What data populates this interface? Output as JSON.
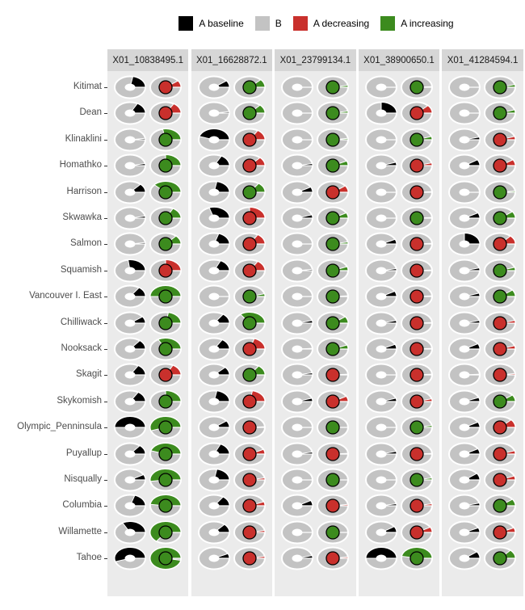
{
  "chart_data": {
    "type": "pie",
    "title": "",
    "xlabel": "",
    "ylabel": "",
    "grid": false,
    "legend_position": "top",
    "legend": [
      {
        "label": "A baseline",
        "color": "#000000"
      },
      {
        "label": "B",
        "color": "#C3C3C3"
      },
      {
        "label": "A decreasing",
        "color": "#C9302C"
      },
      {
        "label": "A increasing",
        "color": "#3C8B1E"
      }
    ],
    "facets": [
      "X01_10838495.1",
      "X01_16628872.1",
      "X01_23799134.1",
      "X01_38900650.1",
      "X01_41284594.1"
    ],
    "rows": [
      "Kitimat",
      "Dean",
      "Klinaklini",
      "Homathko",
      "Harrison",
      "Skwawka",
      "Salmon",
      "Squamish",
      "Vancouver I. East",
      "Chilliwack",
      "Nooksack",
      "Skagit",
      "Skykomish",
      "Olympic_Penninsula",
      "Puyallup",
      "Nisqually",
      "Columbia",
      "Willamette",
      "Tahoe"
    ],
    "glyphs_per_cell": [
      "left donut: black wedge = A baseline fraction, rest B (gray)",
      "right donut: colored wedge = A fraction under change, center dot colored by direction"
    ],
    "cell_format": [
      "a_baseline_fraction",
      "a_change_fraction",
      "direction_color (red = A decreasing, green = A increasing)"
    ],
    "cells": [
      [
        [
          0.22,
          0.1,
          "red"
        ],
        [
          0.1,
          0.12,
          "green"
        ],
        [
          0.0,
          0.03,
          "green"
        ],
        [
          0.0,
          0.01,
          "green"
        ],
        [
          0.0,
          0.04,
          "green"
        ]
      ],
      [
        [
          0.17,
          0.16,
          "red"
        ],
        [
          0.02,
          0.13,
          "green"
        ],
        [
          0.0,
          0.03,
          "green"
        ],
        [
          0.25,
          0.12,
          "red"
        ],
        [
          0.0,
          0.05,
          "green"
        ]
      ],
      [
        [
          0.02,
          0.28,
          "green"
        ],
        [
          0.45,
          0.16,
          "red"
        ],
        [
          0.0,
          0.02,
          "green"
        ],
        [
          0.0,
          0.05,
          "green"
        ],
        [
          0.04,
          0.05,
          "red"
        ]
      ],
      [
        [
          0.03,
          0.25,
          "green"
        ],
        [
          0.17,
          0.13,
          "red"
        ],
        [
          0.03,
          0.07,
          "green"
        ],
        [
          0.05,
          0.04,
          "red"
        ],
        [
          0.09,
          0.09,
          "red"
        ]
      ],
      [
        [
          0.13,
          0.38,
          "green"
        ],
        [
          0.22,
          0.15,
          "green"
        ],
        [
          0.08,
          0.1,
          "red"
        ],
        [
          0.0,
          0.01,
          "red"
        ],
        [
          0.0,
          0.02,
          "green"
        ]
      ],
      [
        [
          0.03,
          0.17,
          "green"
        ],
        [
          0.3,
          0.25,
          "red"
        ],
        [
          0.05,
          0.08,
          "green"
        ],
        [
          0.0,
          0.01,
          "green"
        ],
        [
          0.08,
          0.1,
          "green"
        ]
      ],
      [
        [
          0.02,
          0.13,
          "green"
        ],
        [
          0.2,
          0.16,
          "red"
        ],
        [
          0.0,
          0.03,
          "green"
        ],
        [
          0.07,
          0.01,
          "red"
        ],
        [
          0.25,
          0.13,
          "red"
        ]
      ],
      [
        [
          0.27,
          0.25,
          "red"
        ],
        [
          0.18,
          0.16,
          "red"
        ],
        [
          0.02,
          0.06,
          "green"
        ],
        [
          0.03,
          0.01,
          "red"
        ],
        [
          0.04,
          0.05,
          "green"
        ]
      ],
      [
        [
          0.15,
          0.5,
          "green"
        ],
        [
          0.0,
          0.04,
          "green"
        ],
        [
          0.0,
          0.01,
          "green"
        ],
        [
          0.08,
          0.01,
          "red"
        ],
        [
          0.05,
          0.1,
          "green"
        ]
      ],
      [
        [
          0.1,
          0.22,
          "green"
        ],
        [
          0.15,
          0.35,
          "green"
        ],
        [
          0.04,
          0.1,
          "green"
        ],
        [
          0.04,
          0.01,
          "red"
        ],
        [
          0.04,
          0.04,
          "red"
        ]
      ],
      [
        [
          0.14,
          0.33,
          "green"
        ],
        [
          0.16,
          0.2,
          "red"
        ],
        [
          0.01,
          0.06,
          "green"
        ],
        [
          0.07,
          0.01,
          "red"
        ],
        [
          0.08,
          0.05,
          "red"
        ]
      ],
      [
        [
          0.16,
          0.17,
          "red"
        ],
        [
          0.12,
          0.15,
          "green"
        ],
        [
          0.03,
          0.01,
          "red"
        ],
        [
          0.0,
          0.01,
          "red"
        ],
        [
          0.01,
          0.02,
          "red"
        ]
      ],
      [
        [
          0.16,
          0.25,
          "green"
        ],
        [
          0.22,
          0.22,
          "red"
        ],
        [
          0.05,
          0.08,
          "red"
        ],
        [
          0.05,
          0.04,
          "red"
        ],
        [
          0.06,
          0.1,
          "green"
        ]
      ],
      [
        [
          0.5,
          0.55,
          "green"
        ],
        [
          0.1,
          0.01,
          "red"
        ],
        [
          0.0,
          0.0,
          "green"
        ],
        [
          0.0,
          0.03,
          "green"
        ],
        [
          0.08,
          0.12,
          "red"
        ]
      ],
      [
        [
          0.14,
          0.45,
          "green"
        ],
        [
          0.18,
          0.07,
          "red"
        ],
        [
          0.03,
          0.01,
          "red"
        ],
        [
          0.04,
          0.01,
          "red"
        ],
        [
          0.08,
          0.05,
          "red"
        ]
      ],
      [
        [
          0.08,
          0.52,
          "green"
        ],
        [
          0.22,
          0.03,
          "red"
        ],
        [
          0.0,
          0.0,
          "green"
        ],
        [
          0.0,
          0.03,
          "green"
        ],
        [
          0.1,
          0.06,
          "red"
        ]
      ],
      [
        [
          0.2,
          0.48,
          "green"
        ],
        [
          0.15,
          0.06,
          "red"
        ],
        [
          0.08,
          0.02,
          "red"
        ],
        [
          0.03,
          0.03,
          "red"
        ],
        [
          0.04,
          0.1,
          "green"
        ]
      ],
      [
        [
          0.33,
          0.65,
          "green"
        ],
        [
          0.13,
          0.03,
          "red"
        ],
        [
          0.0,
          0.0,
          "green"
        ],
        [
          0.09,
          0.08,
          "red"
        ],
        [
          0.07,
          0.07,
          "red"
        ]
      ],
      [
        [
          0.55,
          0.97,
          "green"
        ],
        [
          0.07,
          0.03,
          "red"
        ],
        [
          0.04,
          0.02,
          "red"
        ],
        [
          0.5,
          0.47,
          "green"
        ],
        [
          0.1,
          0.13,
          "green"
        ]
      ]
    ],
    "colors": {
      "baseline": "#000000",
      "b_gray": "#C3C3C3",
      "decreasing_red": "#C9302C",
      "increasing_green": "#3C8B1E",
      "panel_bg": "#EBEBEB",
      "strip_bg": "#D6D6D6",
      "axis_text": "#4D4D4D"
    }
  }
}
